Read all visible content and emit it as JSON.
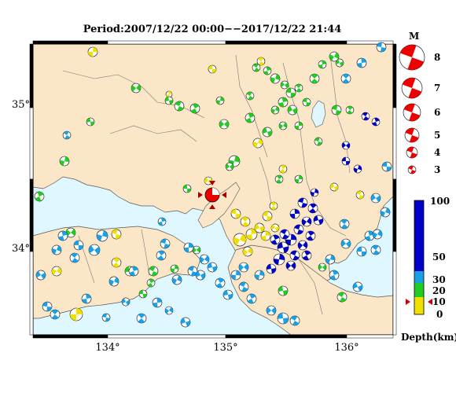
{
  "title": "Period:2007/12/22 00:00−−2017/12/22 21:44",
  "axes": {
    "lon_labels": [
      "134°",
      "135°",
      "136°"
    ],
    "lat_labels": [
      "35°",
      "34°"
    ]
  },
  "magnitude_legend": {
    "header": "M",
    "labels": [
      "8",
      "7",
      "6",
      "5",
      "4",
      "3"
    ]
  },
  "depth_legend": {
    "title": "Depth(km)",
    "labels": [
      "100",
      "50",
      "30",
      "20",
      "10",
      "0"
    ],
    "colors": {
      "shallow": "#f0e000",
      "mid": "#22cc22",
      "deep": "#1aa0e6",
      "very_deep": "#0000c8"
    }
  },
  "colors": {
    "land": "#fbe6c8",
    "sea": "#dff8ff",
    "border": "#555555",
    "main_event": "#ee0000"
  }
}
